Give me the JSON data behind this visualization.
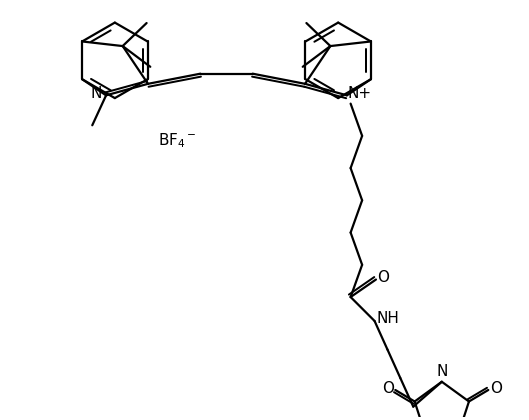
{
  "background_color": "#ffffff",
  "line_color": "#000000",
  "line_width": 1.6,
  "font_size": 10,
  "figsize": [
    5.29,
    4.2
  ],
  "dpi": 100,
  "xlim": [
    0,
    10
  ],
  "ylim": [
    -1,
    8
  ]
}
